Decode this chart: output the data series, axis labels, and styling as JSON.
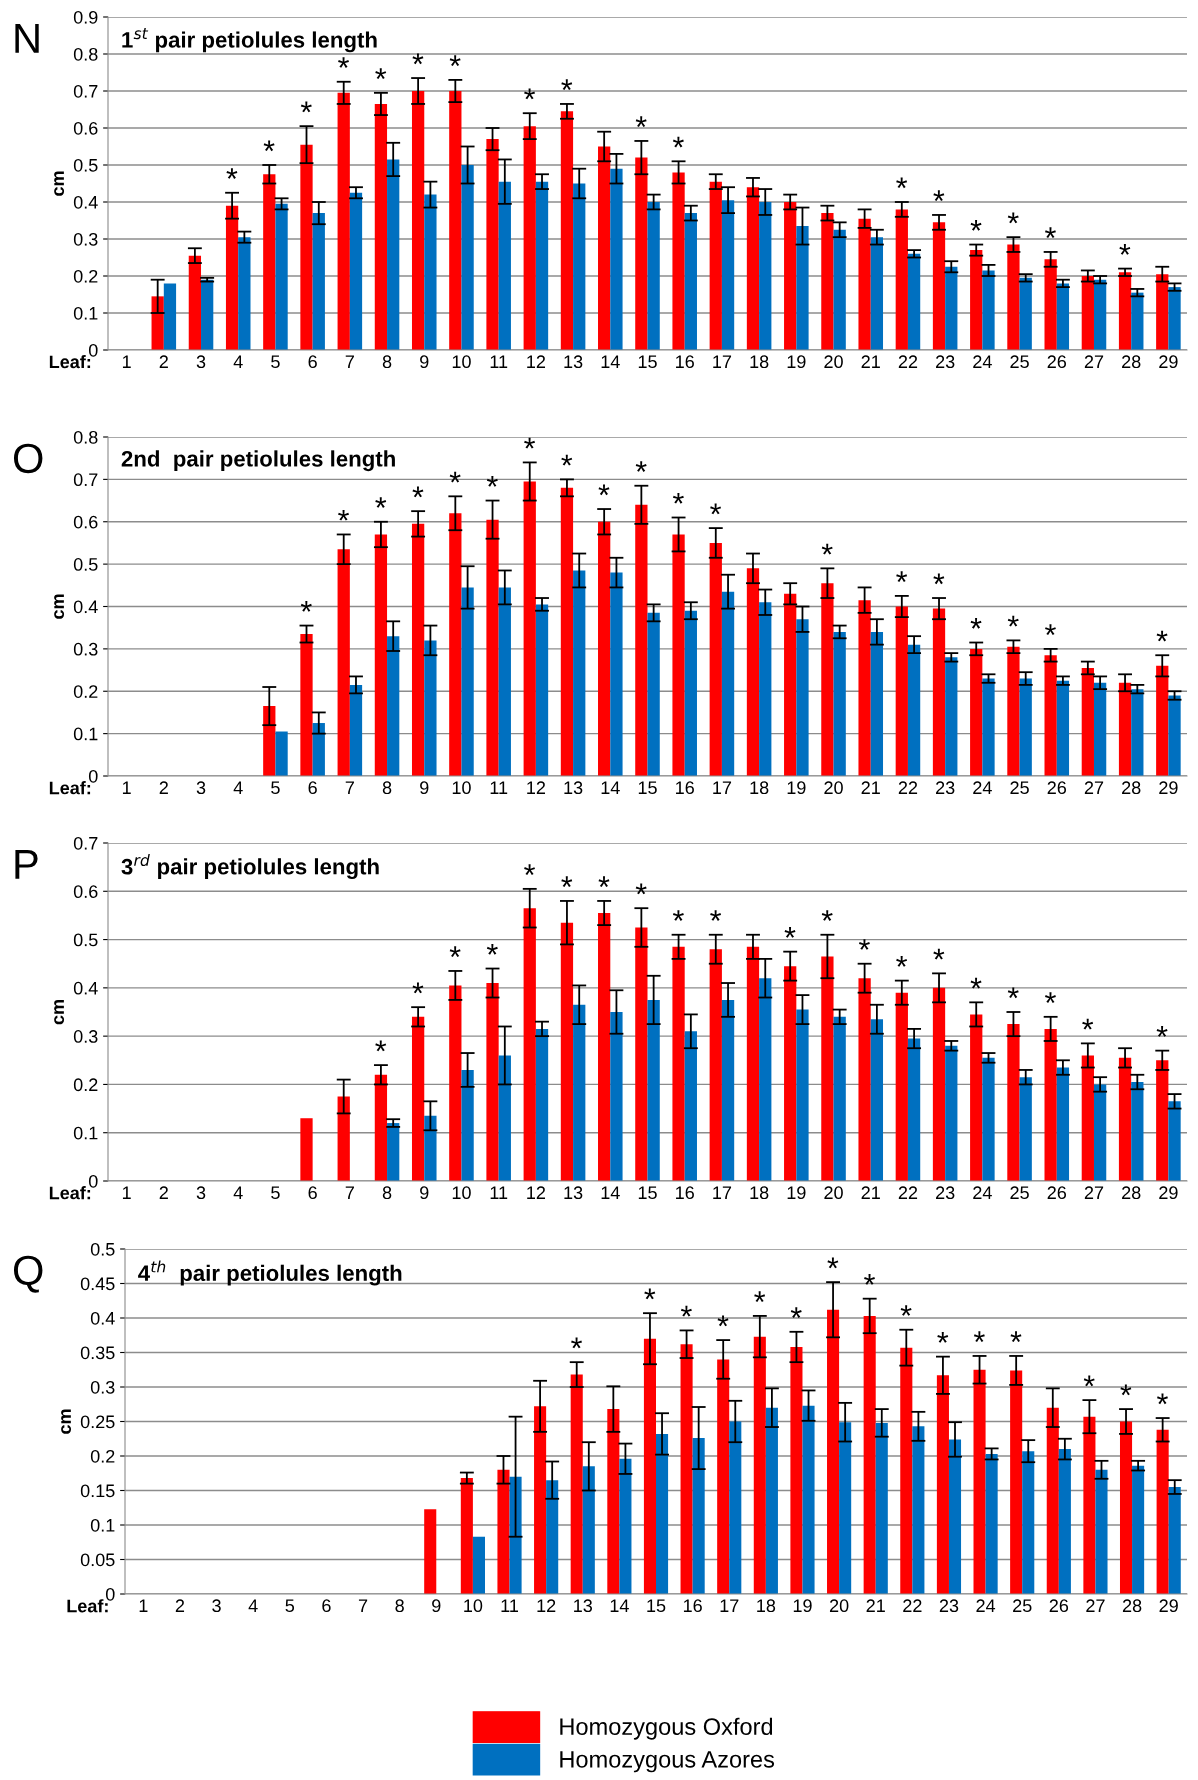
{
  "chart_data": [
    {
      "type": "bar",
      "title": "1$^{st}$ pair petiolules length",
      "ylabel": "cm",
      "xlabel": "Leaf:",
      "categories": [
        "1",
        "2",
        "3",
        "4",
        "5",
        "6",
        "7",
        "8",
        "9",
        "10",
        "11",
        "12",
        "13",
        "14",
        "15",
        "16",
        "17",
        "18",
        "19",
        "20",
        "21",
        "22",
        "23",
        "24",
        "25",
        "26",
        "27",
        "28",
        "29"
      ],
      "series": [
        {
          "color": "#ff0000",
          "values": [
            0,
            0.145,
            0.255,
            0.39,
            0.475,
            0.555,
            0.695,
            0.665,
            0.7,
            0.7,
            0.57,
            0.605,
            0.645,
            0.55,
            0.52,
            0.48,
            0.455,
            0.44,
            0.4,
            0.37,
            0.355,
            0.38,
            0.345,
            0.27,
            0.285,
            0.245,
            0.2,
            0.21,
            0.205
          ],
          "errors": [
            null,
            0.045,
            0.02,
            0.035,
            0.025,
            0.05,
            0.03,
            0.03,
            0.035,
            0.03,
            0.03,
            0.035,
            0.02,
            0.04,
            0.045,
            0.03,
            0.02,
            0.025,
            0.02,
            0.02,
            0.025,
            0.02,
            0.02,
            0.015,
            0.02,
            0.02,
            0.015,
            0.01,
            0.02
          ]
        },
        {
          "color": "#0070c0",
          "values": [
            null,
            0.18,
            0.19,
            0.305,
            0.395,
            0.37,
            0.425,
            0.515,
            0.42,
            0.5,
            0.455,
            0.455,
            0.45,
            0.49,
            0.4,
            0.37,
            0.405,
            0.4,
            0.335,
            0.325,
            0.305,
            0.26,
            0.225,
            0.215,
            0.195,
            0.18,
            0.19,
            0.155,
            0.17
          ],
          "errors": [
            null,
            null,
            0.005,
            0.015,
            0.015,
            0.03,
            0.015,
            0.045,
            0.035,
            0.05,
            0.06,
            0.02,
            0.04,
            0.04,
            0.02,
            0.02,
            0.035,
            0.035,
            0.05,
            0.02,
            0.02,
            0.01,
            0.015,
            0.015,
            0.01,
            0.01,
            0.01,
            0.01,
            0.01
          ]
        }
      ],
      "ylim": [
        0,
        0.9
      ],
      "yticks": [
        0,
        0.1,
        0.2,
        0.3,
        0.4,
        0.5,
        0.6,
        0.7,
        0.8,
        0.9
      ],
      "grid": "y",
      "annotations": [
        "N",
        {
          "text": "*",
          "x": "4",
          "y": 0.39
        },
        {
          "text": "*",
          "x": "5",
          "y": 0.475
        },
        {
          "text": "*",
          "x": "6",
          "y": 0.555
        },
        {
          "text": "*",
          "x": "7",
          "y": 0.695
        },
        {
          "text": "*",
          "x": "8",
          "y": 0.665
        },
        {
          "text": "*",
          "x": "9",
          "y": 0.7
        },
        {
          "text": "*",
          "x": "10",
          "y": 0.7
        },
        {
          "text": "*",
          "x": "12",
          "y": 0.605
        },
        {
          "text": "*",
          "x": "13",
          "y": 0.645
        },
        {
          "text": "*",
          "x": "15",
          "y": 0.52
        },
        {
          "text": "*",
          "x": "16",
          "y": 0.48
        },
        {
          "text": "*",
          "x": "22",
          "y": 0.38
        },
        {
          "text": "*",
          "x": "23",
          "y": 0.345
        },
        {
          "text": "*",
          "x": "24",
          "y": 0.27
        },
        {
          "text": "*",
          "x": "25",
          "y": 0.285
        },
        {
          "text": "*",
          "x": "26",
          "y": 0.245
        },
        {
          "text": "*",
          "x": "28",
          "y": 0.21
        }
      ]
    },
    {
      "type": "bar",
      "title": "2nd  pair petiolules length",
      "ylabel": "cm",
      "xlabel": "Leaf:",
      "categories": [
        "1",
        "2",
        "3",
        "4",
        "5",
        "6",
        "7",
        "8",
        "9",
        "10",
        "11",
        "12",
        "13",
        "14",
        "15",
        "16",
        "17",
        "18",
        "19",
        "20",
        "21",
        "22",
        "23",
        "24",
        "25",
        "26",
        "27",
        "28",
        "29"
      ],
      "series": [
        {
          "color": "#ff0000",
          "values": [
            null,
            null,
            null,
            null,
            0.165,
            0.335,
            0.535,
            0.57,
            0.595,
            0.62,
            0.605,
            0.695,
            0.68,
            0.6,
            0.64,
            0.57,
            0.55,
            0.49,
            0.43,
            0.455,
            0.415,
            0.4,
            0.395,
            0.3,
            0.305,
            0.285,
            0.255,
            0.22,
            0.26
          ],
          "errors": [
            null,
            null,
            null,
            null,
            0.045,
            0.02,
            0.035,
            0.03,
            0.03,
            0.04,
            0.045,
            0.045,
            0.02,
            0.03,
            0.045,
            0.04,
            0.035,
            0.035,
            0.025,
            0.035,
            0.03,
            0.025,
            0.025,
            0.015,
            0.015,
            0.015,
            0.015,
            0.02,
            0.025
          ]
        },
        {
          "color": "#0070c0",
          "values": [
            null,
            null,
            null,
            null,
            0.105,
            0.125,
            0.215,
            0.33,
            0.32,
            0.445,
            0.445,
            0.405,
            0.485,
            0.48,
            0.385,
            0.39,
            0.435,
            0.41,
            0.37,
            0.34,
            0.34,
            0.31,
            0.28,
            0.23,
            0.23,
            0.225,
            0.22,
            0.205,
            0.19
          ],
          "errors": [
            null,
            null,
            null,
            null,
            null,
            0.025,
            0.02,
            0.035,
            0.035,
            0.05,
            0.04,
            0.015,
            0.04,
            0.035,
            0.02,
            0.02,
            0.04,
            0.03,
            0.03,
            0.015,
            0.03,
            0.02,
            0.01,
            0.01,
            0.015,
            0.01,
            0.015,
            0.01,
            0.01
          ]
        }
      ],
      "ylim": [
        0,
        0.8
      ],
      "yticks": [
        0,
        0.1,
        0.2,
        0.3,
        0.4,
        0.5,
        0.6,
        0.7,
        0.8
      ],
      "grid": "y",
      "annotations": [
        "O",
        {
          "text": "*",
          "x": "6",
          "y": 0.335
        },
        {
          "text": "*",
          "x": "7",
          "y": 0.535
        },
        {
          "text": "*",
          "x": "8",
          "y": 0.57
        },
        {
          "text": "*",
          "x": "9",
          "y": 0.595
        },
        {
          "text": "*",
          "x": "10",
          "y": 0.62
        },
        {
          "text": "*",
          "x": "11",
          "y": 0.605
        },
        {
          "text": "*",
          "x": "12",
          "y": 0.695
        },
        {
          "text": "*",
          "x": "13",
          "y": 0.68
        },
        {
          "text": "*",
          "x": "14",
          "y": 0.6
        },
        {
          "text": "*",
          "x": "15",
          "y": 0.64
        },
        {
          "text": "*",
          "x": "16",
          "y": 0.57
        },
        {
          "text": "*",
          "x": "17",
          "y": 0.55
        },
        {
          "text": "*",
          "x": "20",
          "y": 0.455
        },
        {
          "text": "*",
          "x": "22",
          "y": 0.4
        },
        {
          "text": "*",
          "x": "23",
          "y": 0.395
        },
        {
          "text": "*",
          "x": "24",
          "y": 0.3
        },
        {
          "text": "*",
          "x": "25",
          "y": 0.305
        },
        {
          "text": "*",
          "x": "26",
          "y": 0.285
        },
        {
          "text": "*",
          "x": "29",
          "y": 0.26
        }
      ]
    },
    {
      "type": "bar",
      "title": "3$^{rd}$ pair petiolules length",
      "ylabel": "cm",
      "xlabel": "Leaf:",
      "categories": [
        "1",
        "2",
        "3",
        "4",
        "5",
        "6",
        "7",
        "8",
        "9",
        "10",
        "11",
        "12",
        "13",
        "14",
        "15",
        "16",
        "17",
        "18",
        "19",
        "20",
        "21",
        "22",
        "23",
        "24",
        "25",
        "26",
        "27",
        "28",
        "29"
      ],
      "series": [
        {
          "color": "#ff0000",
          "values": [
            0,
            0,
            0,
            0,
            0,
            0.13,
            0.175,
            0.22,
            0.34,
            0.405,
            0.41,
            0.565,
            0.535,
            0.555,
            0.525,
            0.485,
            0.48,
            0.485,
            0.445,
            0.465,
            0.42,
            0.39,
            0.4,
            0.345,
            0.325,
            0.315,
            0.26,
            0.255,
            0.25
          ],
          "errors": [
            null,
            null,
            null,
            null,
            null,
            null,
            0.035,
            0.02,
            0.02,
            0.03,
            0.03,
            0.04,
            0.045,
            0.025,
            0.04,
            0.025,
            0.03,
            0.025,
            0.03,
            0.045,
            0.03,
            0.025,
            0.03,
            0.025,
            0.025,
            0.025,
            0.025,
            0.02,
            0.02
          ]
        },
        {
          "color": "#0070c0",
          "values": [
            null,
            null,
            null,
            null,
            null,
            null,
            null,
            0.12,
            0.135,
            0.23,
            0.26,
            0.315,
            0.365,
            0.35,
            0.375,
            0.31,
            0.375,
            0.42,
            0.355,
            0.34,
            0.335,
            0.295,
            0.28,
            0.255,
            0.215,
            0.235,
            0.2,
            0.205,
            0.165
          ],
          "errors": [
            null,
            null,
            null,
            null,
            null,
            null,
            null,
            0.008,
            0.03,
            0.035,
            0.06,
            0.015,
            0.04,
            0.045,
            0.05,
            0.035,
            0.035,
            0.04,
            0.03,
            0.015,
            0.03,
            0.02,
            0.01,
            0.01,
            0.015,
            0.015,
            0.015,
            0.015,
            0.015
          ]
        }
      ],
      "ylim": [
        0,
        0.7
      ],
      "yticks": [
        0,
        0.1,
        0.2,
        0.3,
        0.4,
        0.5,
        0.6,
        0.7
      ],
      "grid": "y",
      "annotations": [
        "P",
        {
          "text": "*",
          "x": "8",
          "y": 0.22
        },
        {
          "text": "*",
          "x": "9",
          "y": 0.34
        },
        {
          "text": "*",
          "x": "10",
          "y": 0.405
        },
        {
          "text": "*",
          "x": "11",
          "y": 0.41
        },
        {
          "text": "*",
          "x": "12",
          "y": 0.565
        },
        {
          "text": "*",
          "x": "13",
          "y": 0.535
        },
        {
          "text": "*",
          "x": "14",
          "y": 0.555
        },
        {
          "text": "*",
          "x": "15",
          "y": 0.525
        },
        {
          "text": "*",
          "x": "16",
          "y": 0.485
        },
        {
          "text": "*",
          "x": "17",
          "y": 0.48
        },
        {
          "text": "*",
          "x": "19",
          "y": 0.445
        },
        {
          "text": "*",
          "x": "20",
          "y": 0.465
        },
        {
          "text": "*",
          "x": "21",
          "y": 0.42
        },
        {
          "text": "*",
          "x": "22",
          "y": 0.39
        },
        {
          "text": "*",
          "x": "23",
          "y": 0.4
        },
        {
          "text": "*",
          "x": "24",
          "y": 0.345
        },
        {
          "text": "*",
          "x": "25",
          "y": 0.325
        },
        {
          "text": "*",
          "x": "26",
          "y": 0.315
        },
        {
          "text": "*",
          "x": "27",
          "y": 0.26
        },
        {
          "text": "*",
          "x": "29",
          "y": 0.25
        }
      ]
    },
    {
      "type": "bar",
      "title": "4$^{th}$  pair petiolules length",
      "ylabel": "cm",
      "xlabel": "Leaf:",
      "categories": [
        "1",
        "2",
        "3",
        "4",
        "5",
        "6",
        "7",
        "8",
        "9",
        "10",
        "11",
        "12",
        "13",
        "14",
        "15",
        "16",
        "17",
        "18",
        "19",
        "20",
        "21",
        "22",
        "23",
        "24",
        "25",
        "26",
        "27",
        "28",
        "29"
      ],
      "series": [
        {
          "name": "Homozygous Oxford",
          "color": "#ff0000",
          "values": [
            null,
            null,
            null,
            null,
            null,
            null,
            null,
            null,
            0.123,
            0.168,
            0.18,
            0.272,
            0.318,
            0.268,
            0.37,
            0.362,
            0.34,
            0.373,
            0.358,
            0.412,
            0.403,
            0.357,
            0.317,
            0.325,
            0.324,
            0.27,
            0.257,
            0.25,
            0.238
          ],
          "errors": [
            null,
            null,
            null,
            null,
            null,
            null,
            null,
            null,
            null,
            0.008,
            0.02,
            0.037,
            0.018,
            0.033,
            0.037,
            0.02,
            0.028,
            0.03,
            0.022,
            0.04,
            0.025,
            0.026,
            0.027,
            0.02,
            0.021,
            0.028,
            0.024,
            0.018,
            0.017
          ]
        },
        {
          "name": "Homozygous Azores",
          "color": "#0070c0",
          "values": [
            null,
            null,
            null,
            null,
            null,
            null,
            null,
            null,
            null,
            0.083,
            0.17,
            0.165,
            0.185,
            0.196,
            0.232,
            0.226,
            0.25,
            0.27,
            0.273,
            0.249,
            0.248,
            0.243,
            0.224,
            0.203,
            0.207,
            0.21,
            0.18,
            0.186,
            0.155
          ],
          "errors": [
            null,
            null,
            null,
            null,
            null,
            null,
            null,
            null,
            null,
            null,
            0.087,
            0.027,
            0.035,
            0.022,
            0.03,
            0.045,
            0.03,
            0.028,
            0.022,
            0.028,
            0.02,
            0.021,
            0.025,
            0.008,
            0.016,
            0.015,
            0.013,
            0.007,
            0.01
          ]
        }
      ],
      "ylim": [
        0,
        0.5
      ],
      "yticks": [
        0,
        0.05,
        0.1,
        0.15,
        0.2,
        0.25,
        0.3,
        0.35,
        0.4,
        0.45,
        0.5
      ],
      "grid": "y",
      "legend": "bottom",
      "annotations": [
        "Q",
        {
          "text": "*",
          "x": "13",
          "y": 0.318
        },
        {
          "text": "*",
          "x": "15",
          "y": 0.37
        },
        {
          "text": "*",
          "x": "16",
          "y": 0.362
        },
        {
          "text": "*",
          "x": "17",
          "y": 0.34
        },
        {
          "text": "*",
          "x": "18",
          "y": 0.373
        },
        {
          "text": "*",
          "x": "19",
          "y": 0.358
        },
        {
          "text": "*",
          "x": "20",
          "y": 0.412
        },
        {
          "text": "*",
          "x": "21",
          "y": 0.403
        },
        {
          "text": "*",
          "x": "22",
          "y": 0.357
        },
        {
          "text": "*",
          "x": "23",
          "y": 0.317
        },
        {
          "text": "*",
          "x": "24",
          "y": 0.325
        },
        {
          "text": "*",
          "x": "25",
          "y": 0.324
        },
        {
          "text": "*",
          "x": "27",
          "y": 0.257
        },
        {
          "text": "*",
          "x": "28",
          "y": 0.25
        },
        {
          "text": "*",
          "x": "29",
          "y": 0.238
        }
      ]
    }
  ]
}
